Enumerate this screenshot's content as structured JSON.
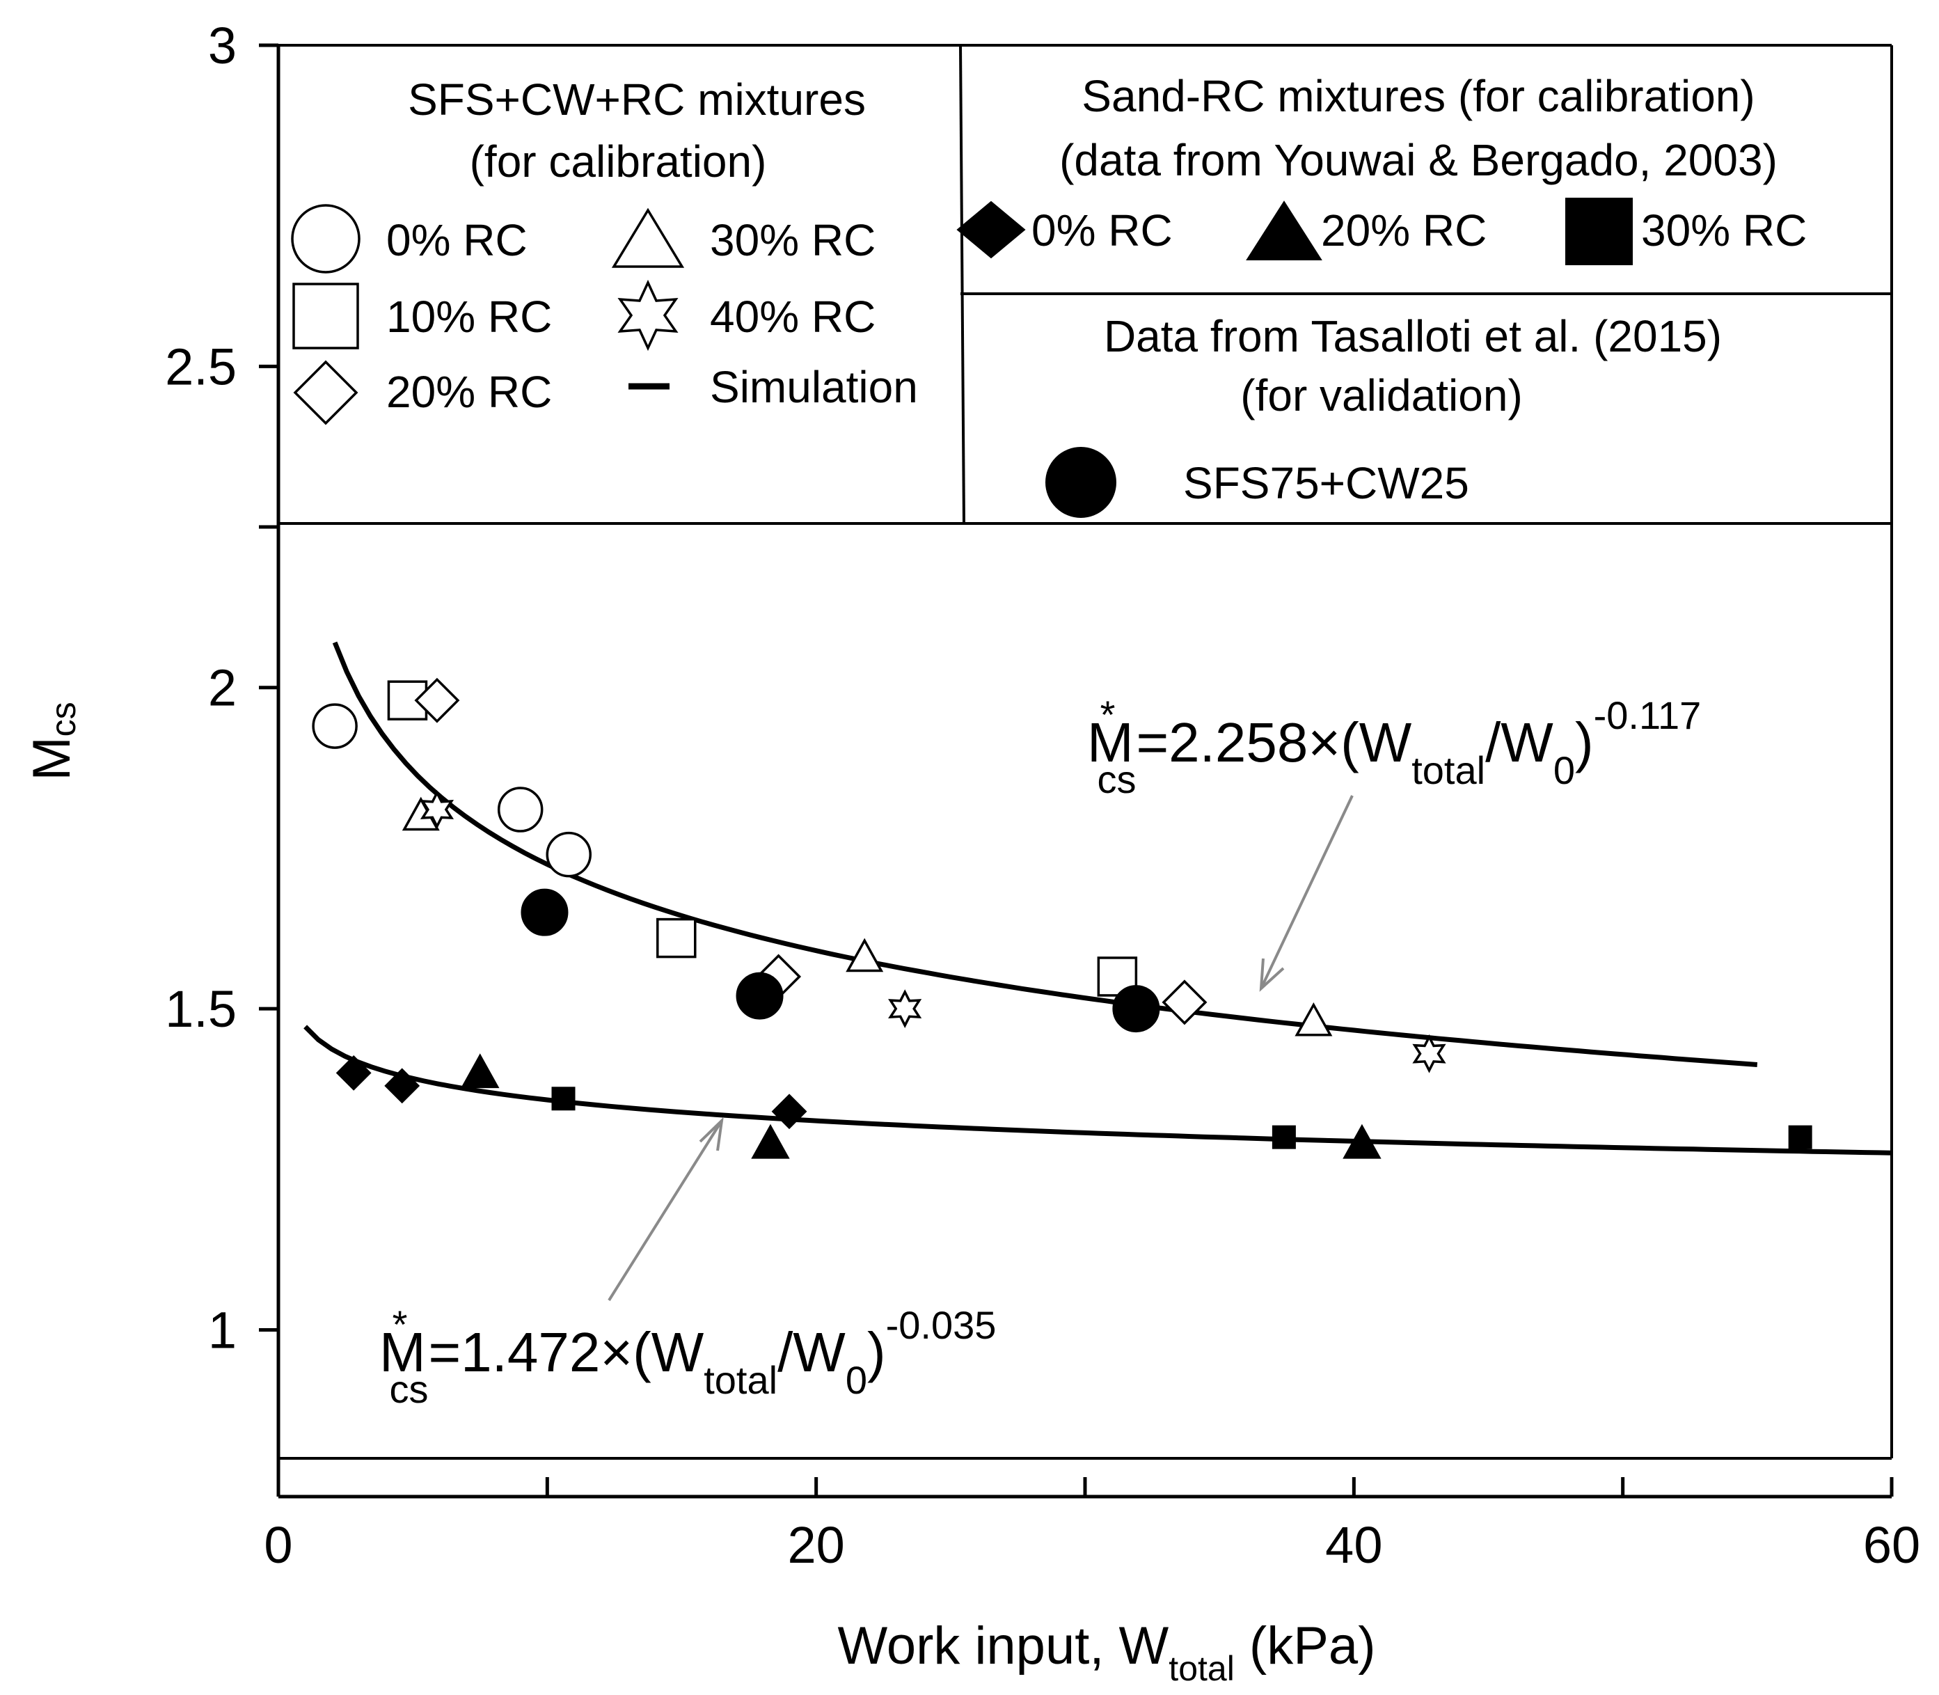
{
  "chart_data": {
    "type": "scatter",
    "xlabel_main": "Work input, W",
    "xlabel_sub": "total",
    "xlabel_unit": " (kPa)",
    "ylabel_main": "M",
    "ylabel_sub": "cs",
    "xlim": [
      0,
      60
    ],
    "ylim": [
      0.8,
      3.0
    ],
    "xticks": [
      0,
      10,
      20,
      30,
      40,
      50,
      60
    ],
    "xtick_labels": [
      "0",
      "",
      "20",
      "",
      "40",
      "",
      "60"
    ],
    "yticks": [
      1.0,
      1.5,
      2.0,
      2.5,
      3.0
    ],
    "ytick_labels": [
      "1",
      "1.5",
      "2",
      "2.5",
      "3"
    ],
    "series": [
      {
        "name": "0% RC",
        "group": "SFS+CW+RC",
        "marker": "circle-open",
        "x": [
          2.1,
          9.0,
          10.8
        ],
        "y": [
          1.94,
          1.81,
          1.74
        ]
      },
      {
        "name": "10% RC",
        "group": "SFS+CW+RC",
        "marker": "square-open",
        "x": [
          4.8,
          14.8,
          31.2
        ],
        "y": [
          1.98,
          1.61,
          1.55
        ]
      },
      {
        "name": "20% RC",
        "group": "SFS+CW+RC",
        "marker": "diamond-open",
        "x": [
          5.9,
          18.6,
          33.7
        ],
        "y": [
          1.98,
          1.55,
          1.51
        ]
      },
      {
        "name": "30% RC",
        "group": "SFS+CW+RC",
        "marker": "triangle-open",
        "x": [
          5.3,
          21.8,
          38.5
        ],
        "y": [
          1.8,
          1.58,
          1.48
        ]
      },
      {
        "name": "40% RC",
        "group": "SFS+CW+RC",
        "marker": "star-open",
        "x": [
          5.9,
          23.3,
          42.8
        ],
        "y": [
          1.81,
          1.5,
          1.43
        ]
      },
      {
        "name": "0% RC",
        "group": "Sand-RC",
        "marker": "diamond-filled",
        "x": [
          2.8,
          4.6,
          19.0
        ],
        "y": [
          1.4,
          1.38,
          1.34
        ]
      },
      {
        "name": "20% RC",
        "group": "Sand-RC",
        "marker": "triangle-filled",
        "x": [
          7.5,
          18.3,
          40.3
        ],
        "y": [
          1.4,
          1.29,
          1.29
        ]
      },
      {
        "name": "30% RC",
        "group": "Sand-RC",
        "marker": "square-filled",
        "x": [
          10.6,
          37.4,
          56.6
        ],
        "y": [
          1.36,
          1.3,
          1.3
        ]
      },
      {
        "name": "SFS75+CW25",
        "group": "Tasalloti",
        "marker": "circle-filled",
        "x": [
          9.9,
          17.9,
          31.9
        ],
        "y": [
          1.65,
          1.52,
          1.5
        ]
      }
    ],
    "fits": [
      {
        "name": "Simulation upper",
        "a": 2.258,
        "b": -0.117,
        "x_range": [
          2.1,
          55.0
        ]
      },
      {
        "name": "Simulation lower",
        "a": 1.472,
        "b": -0.035,
        "x_range": [
          1.0,
          60.0
        ]
      }
    ],
    "equations": [
      {
        "prefix": "M",
        "star": "*",
        "sub": "cs",
        "mid": "=2.258×(W",
        "sub2": "total",
        "mid2": "/W",
        "sub3": "0",
        "close": ")",
        "exp": "-0.117"
      },
      {
        "prefix": "M",
        "star": "*",
        "sub": "cs",
        "mid": "=1.472×(W",
        "sub2": "total",
        "mid2": "/W",
        "sub3": "0",
        "close": ")",
        "exp": "-0.035"
      }
    ],
    "legend": {
      "sfs_title_1": "SFS+CW+RC mixtures",
      "sfs_title_2": "(for calibration)",
      "sfs_items": [
        "0% RC",
        "10% RC",
        "20% RC",
        "30% RC",
        "40% RC",
        "Simulation"
      ],
      "sand_title_1": "Sand-RC mixtures (for calibration)",
      "sand_title_2": "(data from Youwai & Bergado, 2003)",
      "sand_items": [
        "0% RC",
        "20% RC",
        "30% RC"
      ],
      "tas_title_1": "Data from Tasalloti et al. (2015)",
      "tas_title_2": "(for validation)",
      "tas_item": "SFS75+CW25"
    }
  }
}
